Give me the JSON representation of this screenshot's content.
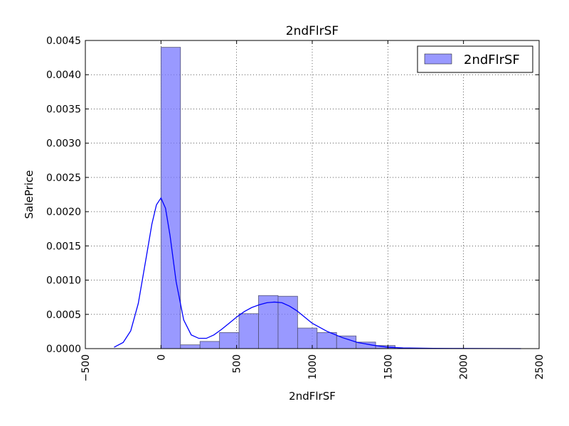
{
  "chart_data": {
    "type": "bar",
    "title": "2ndFlrSF",
    "xlabel": "2ndFlrSF",
    "ylabel": "SalePrice",
    "xlim": [
      -500,
      2500
    ],
    "ylim": [
      0,
      0.0045
    ],
    "grid": true,
    "legend_position": "top-right",
    "x_ticks": [
      "−500",
      "0",
      "500",
      "1000",
      "1500",
      "2000",
      "2500"
    ],
    "y_ticks": [
      "0.0000",
      "0.0005",
      "0.0010",
      "0.0015",
      "0.0020",
      "0.0025",
      "0.0030",
      "0.0035",
      "0.0040",
      "0.0045"
    ],
    "series": [
      {
        "name": "2ndFlrSF",
        "kind": "histogram",
        "color": "#7777ff",
        "bins": [
          {
            "x0": 0,
            "x1": 129,
            "value": 0.0044
          },
          {
            "x0": 129,
            "x1": 258,
            "value": 5.5e-05
          },
          {
            "x0": 258,
            "x1": 387,
            "value": 0.000105
          },
          {
            "x0": 387,
            "x1": 516,
            "value": 0.000235
          },
          {
            "x0": 516,
            "x1": 645,
            "value": 0.00051
          },
          {
            "x0": 645,
            "x1": 774,
            "value": 0.000775
          },
          {
            "x0": 774,
            "x1": 903,
            "value": 0.000765
          },
          {
            "x0": 903,
            "x1": 1032,
            "value": 0.0003
          },
          {
            "x0": 1032,
            "x1": 1161,
            "value": 0.000235
          },
          {
            "x0": 1161,
            "x1": 1290,
            "value": 0.000185
          },
          {
            "x0": 1290,
            "x1": 1419,
            "value": 9.5e-05
          },
          {
            "x0": 1419,
            "x1": 1548,
            "value": 4.5e-05
          }
        ]
      },
      {
        "kind": "kde",
        "color": "#0000ff",
        "x": [
          -310,
          -250,
          -200,
          -150,
          -100,
          -60,
          -30,
          0,
          30,
          60,
          100,
          150,
          200,
          250,
          300,
          350,
          400,
          450,
          500,
          550,
          600,
          650,
          700,
          750,
          800,
          850,
          900,
          950,
          1000,
          1100,
          1200,
          1300,
          1400,
          1500,
          1600,
          1800,
          2000,
          2200,
          2380
        ],
        "y": [
          2e-05,
          9e-05,
          0.00026,
          0.00066,
          0.0013,
          0.00182,
          0.0021,
          0.0022,
          0.00205,
          0.00165,
          0.00098,
          0.00042,
          0.0002,
          0.00015,
          0.00015,
          0.0002,
          0.00028,
          0.00037,
          0.00046,
          0.00054,
          0.0006,
          0.00064,
          0.00067,
          0.00068,
          0.00067,
          0.00062,
          0.00055,
          0.00046,
          0.00037,
          0.00025,
          0.00016,
          9e-05,
          5e-05,
          2e-05,
          1e-05,
          3e-06,
          2e-06,
          1e-06,
          0.0
        ]
      }
    ]
  }
}
